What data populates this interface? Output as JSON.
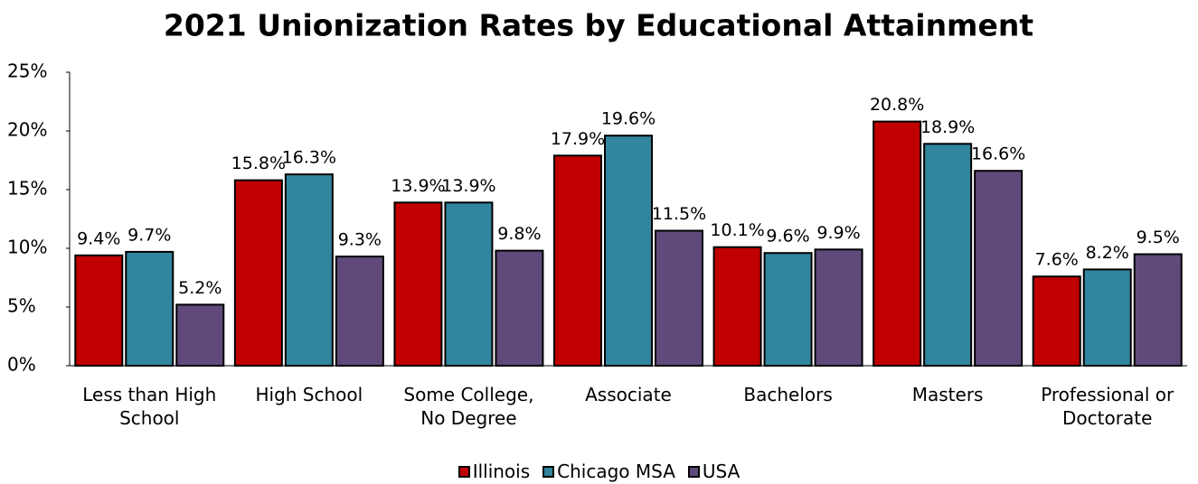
{
  "chart_data": {
    "type": "bar",
    "title": "2021 Unionization Rates by Educational Attainment",
    "categories": [
      "Less than High School",
      "High School",
      "Some College, No Degree",
      "Associate",
      "Bachelors",
      "Masters",
      "Professional or Doctorate"
    ],
    "series": [
      {
        "name": "Illinois",
        "color": "#c00000",
        "values": [
          9.4,
          15.8,
          13.9,
          17.9,
          10.1,
          20.8,
          7.6
        ],
        "value_labels": [
          "9.4%",
          "15.8%",
          "13.9%",
          "17.9%",
          "10.1%",
          "20.8%",
          "7.6%"
        ]
      },
      {
        "name": "Chicago MSA",
        "color": "#31859c",
        "values": [
          9.7,
          16.3,
          13.9,
          19.6,
          9.6,
          18.9,
          8.2
        ],
        "value_labels": [
          "9.7%",
          "16.3%",
          "13.9%",
          "19.6%",
          "9.6%",
          "18.9%",
          "8.2%"
        ]
      },
      {
        "name": "USA",
        "color": "#604a7b",
        "values": [
          5.2,
          9.3,
          9.8,
          11.5,
          9.9,
          16.6,
          9.5
        ],
        "value_labels": [
          "5.2%",
          "9.3%",
          "9.8%",
          "11.5%",
          "9.9%",
          "16.6%",
          "9.5%"
        ]
      }
    ],
    "ylim": [
      0,
      25
    ],
    "yticks": [
      {
        "value": 0,
        "label": "0%"
      },
      {
        "value": 5,
        "label": "5%"
      },
      {
        "value": 10,
        "label": "10%"
      },
      {
        "value": 15,
        "label": "15%"
      },
      {
        "value": 20,
        "label": "20%"
      },
      {
        "value": 25,
        "label": "25%"
      }
    ],
    "legend": "bottom"
  }
}
